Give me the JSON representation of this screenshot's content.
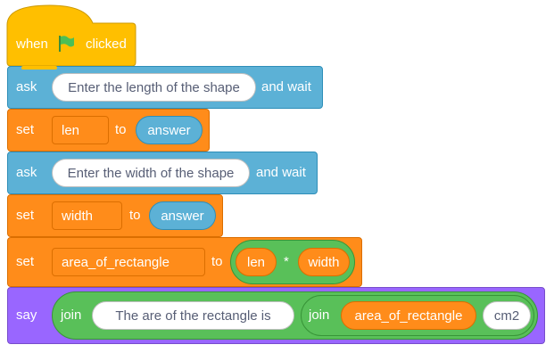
{
  "colors": {
    "events": "#ffbf00",
    "sensing": "#5cb1d6",
    "variables": "#ff8c1a",
    "operators": "#59c059",
    "looks": "#9966ff"
  },
  "script": {
    "hat": {
      "when": "when",
      "clicked": "clicked"
    },
    "ask1": {
      "keyword": "ask",
      "prompt": "Enter the length of the shape",
      "suffix": "and wait"
    },
    "set1": {
      "keyword": "set",
      "variable": "len",
      "to": "to",
      "value": "answer"
    },
    "ask2": {
      "keyword": "ask",
      "prompt": "Enter the width of the shape",
      "suffix": "and wait"
    },
    "set2": {
      "keyword": "set",
      "variable": "width",
      "to": "to",
      "value": "answer"
    },
    "set3": {
      "keyword": "set",
      "variable": "area_of_rectangle",
      "to": "to",
      "multiply": {
        "left": "len",
        "operator": "*",
        "right": "width"
      }
    },
    "say": {
      "keyword": "say",
      "join_outer": {
        "label": "join",
        "first": "The are of the rectangle is",
        "join_inner": {
          "label": "join",
          "first": "area_of_rectangle",
          "second": "cm2"
        }
      }
    }
  }
}
